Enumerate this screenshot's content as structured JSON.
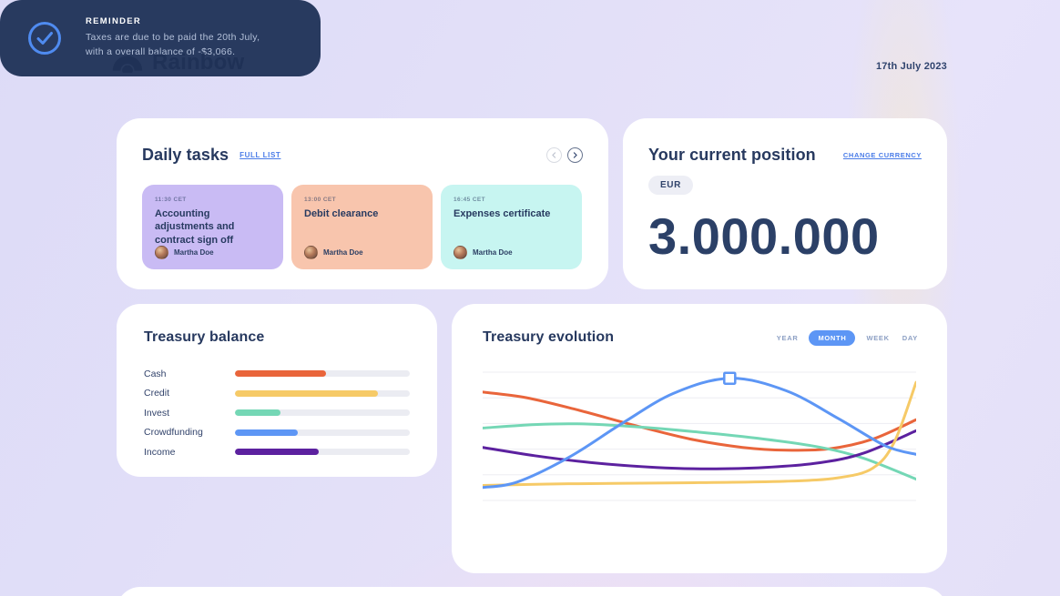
{
  "page": {
    "brand": "Rainbow",
    "date": "17th July 2023"
  },
  "daily_tasks": {
    "title": "Daily tasks",
    "link_label": "FULL LIST",
    "tasks": [
      {
        "time": "11:30 CET",
        "title": "Accounting adjustments and contract sign off",
        "assignee": "Martha Doe",
        "bg": "#c9bbf4"
      },
      {
        "time": "13:00 CET",
        "title": "Debit clearance",
        "assignee": "Martha Doe",
        "bg": "#f8c5ad"
      },
      {
        "time": "16:45 CET",
        "title": "Expenses certificate",
        "assignee": "Martha Doe",
        "bg": "#c7f5f1"
      }
    ]
  },
  "position": {
    "title": "Your current position",
    "link_label": "CHANGE CURRENCY",
    "currency": "EUR",
    "amount": "3.000.000"
  },
  "treasury_balance": {
    "title": "Treasury balance",
    "rows": [
      {
        "label": "Cash",
        "percent": 52,
        "color": "#e9653b"
      },
      {
        "label": "Credit",
        "percent": 82,
        "color": "#f6ca67"
      },
      {
        "label": "Invest",
        "percent": 26,
        "color": "#74d7b5"
      },
      {
        "label": "Crowdfunding",
        "percent": 36,
        "color": "#5d96f5"
      },
      {
        "label": "Income",
        "percent": 48,
        "color": "#5c219f"
      }
    ]
  },
  "reminder": {
    "title": "REMINDER",
    "line1": "Taxes are due to be paid the 20th July,",
    "line2": "with a overall balance of -$3,066.",
    "accent": "#4f8bf0"
  },
  "evolution": {
    "title": "Treasury evolution",
    "toggle": [
      {
        "label": "YEAR",
        "active": false
      },
      {
        "label": "MONTH",
        "active": true
      },
      {
        "label": "WEEK",
        "active": false
      },
      {
        "label": "DAY",
        "active": false
      }
    ]
  },
  "chart_data": {
    "type": "line",
    "title": "Treasury evolution",
    "xlabel": "",
    "ylabel": "",
    "x_range": [
      0,
      100
    ],
    "y_range": [
      0,
      100
    ],
    "grid": "horizontal-only, 6 faint lines",
    "legend": "none (colors match Treasury balance categories)",
    "series": [
      {
        "name": "Cash",
        "color": "#e9653b",
        "points": [
          [
            0,
            81
          ],
          [
            10,
            77
          ],
          [
            22,
            68
          ],
          [
            35,
            57
          ],
          [
            48,
            47
          ],
          [
            60,
            41
          ],
          [
            70,
            39
          ],
          [
            80,
            40
          ],
          [
            90,
            47
          ],
          [
            100,
            61
          ]
        ]
      },
      {
        "name": "Invest",
        "color": "#74d7b5",
        "points": [
          [
            0,
            55
          ],
          [
            12,
            57.5
          ],
          [
            22,
            58
          ],
          [
            35,
            56
          ],
          [
            50,
            52
          ],
          [
            65,
            47
          ],
          [
            78,
            41
          ],
          [
            88,
            33
          ],
          [
            100,
            18
          ]
        ]
      },
      {
        "name": "Income",
        "color": "#5c219f",
        "points": [
          [
            0,
            41
          ],
          [
            12,
            35
          ],
          [
            25,
            30
          ],
          [
            40,
            26.5
          ],
          [
            52,
            25.5
          ],
          [
            65,
            26.5
          ],
          [
            78,
            30
          ],
          [
            88,
            37
          ],
          [
            100,
            53
          ]
        ]
      },
      {
        "name": "Credit",
        "color": "#f6ca67",
        "points": [
          [
            0,
            13.5
          ],
          [
            15,
            14.5
          ],
          [
            30,
            15
          ],
          [
            50,
            15.5
          ],
          [
            70,
            16.5
          ],
          [
            82,
            19
          ],
          [
            90,
            26
          ],
          [
            95,
            45
          ],
          [
            100,
            88
          ]
        ]
      },
      {
        "name": "Crowdfunding",
        "color": "#5d96f5",
        "points": [
          [
            0,
            12
          ],
          [
            8,
            16
          ],
          [
            20,
            34
          ],
          [
            32,
            58
          ],
          [
            44,
            80
          ],
          [
            57,
            91
          ],
          [
            70,
            82
          ],
          [
            82,
            62
          ],
          [
            93,
            42
          ],
          [
            100,
            36
          ]
        ]
      }
    ],
    "marker": {
      "series": "Crowdfunding",
      "x": 57,
      "y": 91,
      "shape": "square-outline"
    }
  }
}
